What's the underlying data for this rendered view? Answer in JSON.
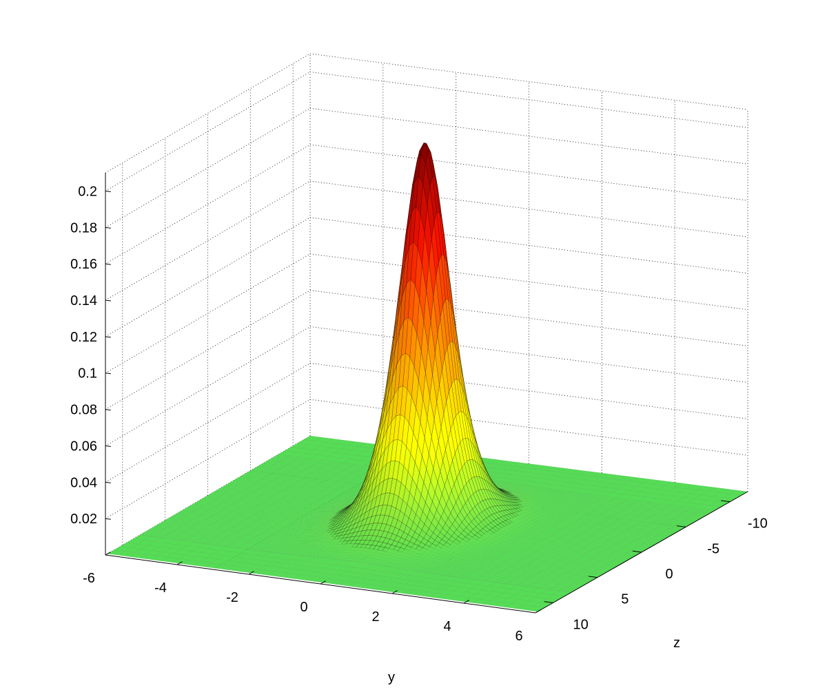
{
  "chart_data": {
    "type": "surface",
    "title": "",
    "xlabel": "y",
    "ylabel": "z",
    "zlabel": "",
    "x_range": [
      -6,
      6
    ],
    "y_range": [
      -12,
      12
    ],
    "z_range": [
      0,
      0.21
    ],
    "x_ticks": [
      "-6",
      "-4",
      "-2",
      "0",
      "2",
      "4",
      "6"
    ],
    "y_ticks": [
      "-10",
      "-5",
      "0",
      "5",
      "10"
    ],
    "z_ticks": [
      "0.02",
      "0.04",
      "0.06",
      "0.08",
      "0.1",
      "0.12",
      "0.14",
      "0.16",
      "0.18",
      "0.2"
    ],
    "grid": true,
    "colormap": [
      "#55dd55",
      "#ffff00",
      "#ff8800",
      "#ee1100",
      "#770000"
    ],
    "surface": {
      "function": "sech^2 soliton peak",
      "peak_value": 0.21,
      "peak_at": {
        "y": 0,
        "z": 0
      },
      "width_y": 0.8,
      "width_z": 2.4
    }
  }
}
